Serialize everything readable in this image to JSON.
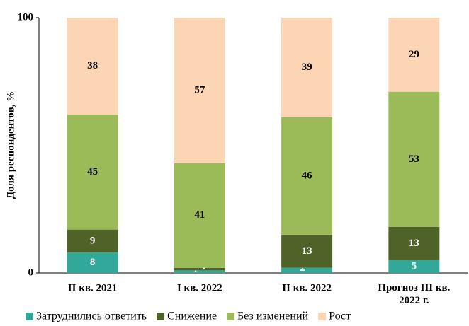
{
  "chart_data": {
    "type": "stacked_bar",
    "y_label": "Доля респондентов, %",
    "categories": [
      "II  кв. 2021",
      "I  кв. 2022",
      "II кв. 2022",
      "Прогноз III кв. 2022 г."
    ],
    "series": [
      {
        "name": "Затруднились ответить",
        "color": "#31a899",
        "values": [
          8,
          1,
          2,
          5
        ]
      },
      {
        "name": "Снижение",
        "color": "#4f6228",
        "values": [
          9,
          1,
          13,
          13
        ]
      },
      {
        "name": "Без изменений",
        "color": "#9bbb59",
        "values": [
          45,
          41,
          46,
          53
        ]
      },
      {
        "name": "Рост",
        "color": "#fcd5b5",
        "values": [
          38,
          57,
          39,
          29
        ]
      }
    ],
    "ylim": [
      0,
      100
    ],
    "yticks": [
      0,
      100
    ],
    "legend": "bottom"
  }
}
